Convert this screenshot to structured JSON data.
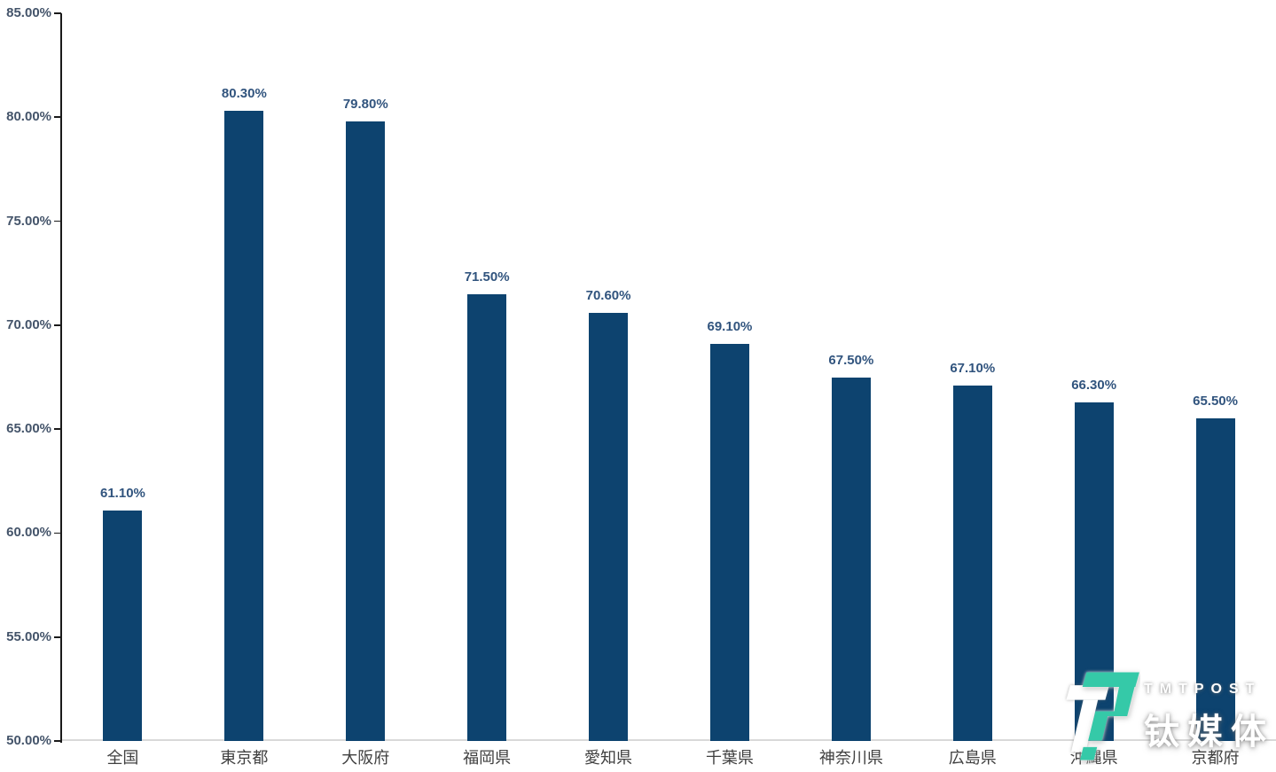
{
  "chart_data": {
    "type": "bar",
    "title": "",
    "xlabel": "",
    "ylabel": "",
    "categories": [
      "全国",
      "東京都",
      "大阪府",
      "福岡県",
      "愛知県",
      "千葉県",
      "神奈川県",
      "広島県",
      "沖縄県",
      "京都府"
    ],
    "values": [
      61.1,
      80.3,
      79.8,
      71.5,
      70.6,
      69.1,
      67.5,
      67.1,
      66.3,
      65.5
    ],
    "data_labels": [
      "61.10%",
      "80.30%",
      "79.80%",
      "71.50%",
      "70.60%",
      "69.10%",
      "67.50%",
      "67.10%",
      "66.30%",
      "65.50%"
    ],
    "ylim": [
      50,
      85
    ],
    "y_tick_values": [
      85,
      80,
      75,
      70,
      65,
      60,
      55,
      50
    ],
    "y_tick_labels": [
      "85.00%",
      "80.00%",
      "75.00%",
      "70.00%",
      "65.00%",
      "60.00%",
      "55.00%",
      "50.00%"
    ],
    "grid": false,
    "legend": "none",
    "bar_color": "#0d436f",
    "axis_label_color": "#44546a",
    "data_label_color": "#31547e",
    "category_label_color": "#404040",
    "axis_line_color": "#1a1a1a",
    "baseline_color": "#d9d9d9"
  },
  "watermark": {
    "brand": "TMTPOST",
    "brand_cn": "钛媒体",
    "logo_teal": "#35c9a8",
    "logo_white": "#ffffff"
  }
}
